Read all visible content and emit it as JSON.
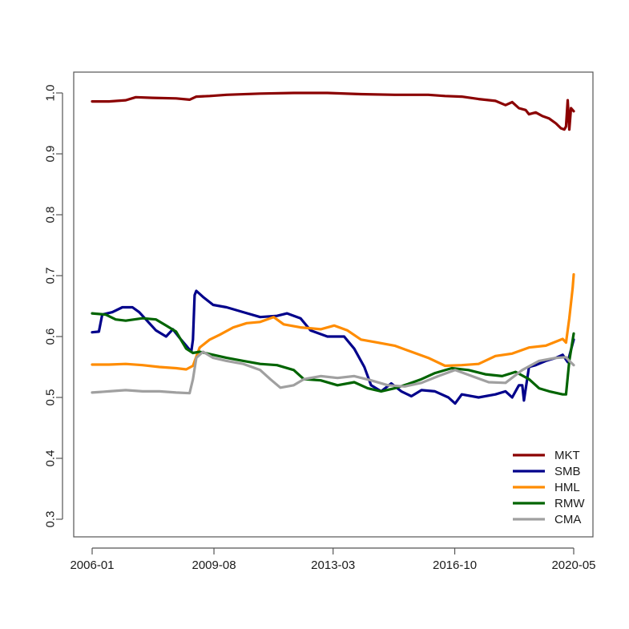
{
  "chart_data": {
    "type": "line",
    "title": "",
    "xlabel": "",
    "ylabel": "",
    "xlim": [
      2006.0,
      2020.42
    ],
    "ylim": [
      0.27,
      1.03
    ],
    "x_ticks": [
      {
        "value": 2006.0,
        "label": "2006-01"
      },
      {
        "value": 2009.625,
        "label": "2009-08"
      },
      {
        "value": 2013.17,
        "label": "2013-03"
      },
      {
        "value": 2016.79,
        "label": "2016-10"
      },
      {
        "value": 2020.33,
        "label": "2020-05"
      }
    ],
    "y_ticks": [
      {
        "value": 0.3,
        "label": "0.3"
      },
      {
        "value": 0.4,
        "label": "0.4"
      },
      {
        "value": 0.5,
        "label": "0.5"
      },
      {
        "value": 0.6,
        "label": "0.6"
      },
      {
        "value": 0.7,
        "label": "0.7"
      },
      {
        "value": 0.8,
        "label": "0.8"
      },
      {
        "value": 0.9,
        "label": "0.9"
      },
      {
        "value": 1.0,
        "label": "1.0"
      }
    ],
    "grid": false,
    "legend_position": "bottom-right",
    "series": [
      {
        "name": "MKT",
        "color": "#8b0000",
        "points": [
          [
            2006.0,
            0.986
          ],
          [
            2006.5,
            0.986
          ],
          [
            2007.0,
            0.988
          ],
          [
            2007.3,
            0.993
          ],
          [
            2007.8,
            0.992
          ],
          [
            2008.5,
            0.991
          ],
          [
            2008.9,
            0.989
          ],
          [
            2009.1,
            0.994
          ],
          [
            2009.5,
            0.995
          ],
          [
            2010.0,
            0.997
          ],
          [
            2011.0,
            0.999
          ],
          [
            2012.0,
            1.0
          ],
          [
            2013.0,
            1.0
          ],
          [
            2014.0,
            0.998
          ],
          [
            2015.0,
            0.997
          ],
          [
            2016.0,
            0.997
          ],
          [
            2016.5,
            0.995
          ],
          [
            2017.0,
            0.994
          ],
          [
            2017.5,
            0.99
          ],
          [
            2018.0,
            0.987
          ],
          [
            2018.3,
            0.98
          ],
          [
            2018.5,
            0.985
          ],
          [
            2018.7,
            0.975
          ],
          [
            2018.9,
            0.972
          ],
          [
            2019.0,
            0.965
          ],
          [
            2019.2,
            0.968
          ],
          [
            2019.4,
            0.962
          ],
          [
            2019.6,
            0.958
          ],
          [
            2019.8,
            0.95
          ],
          [
            2019.95,
            0.942
          ],
          [
            2020.05,
            0.94
          ],
          [
            2020.1,
            0.945
          ],
          [
            2020.15,
            0.988
          ],
          [
            2020.2,
            0.94
          ],
          [
            2020.25,
            0.975
          ],
          [
            2020.33,
            0.97
          ]
        ]
      },
      {
        "name": "SMB",
        "color": "#00008b",
        "points": [
          [
            2006.0,
            0.607
          ],
          [
            2006.2,
            0.608
          ],
          [
            2006.3,
            0.636
          ],
          [
            2006.6,
            0.64
          ],
          [
            2006.9,
            0.648
          ],
          [
            2007.2,
            0.648
          ],
          [
            2007.4,
            0.64
          ],
          [
            2007.6,
            0.628
          ],
          [
            2007.9,
            0.61
          ],
          [
            2008.2,
            0.6
          ],
          [
            2008.4,
            0.612
          ],
          [
            2008.6,
            0.598
          ],
          [
            2008.8,
            0.585
          ],
          [
            2008.95,
            0.575
          ],
          [
            2009.0,
            0.595
          ],
          [
            2009.05,
            0.668
          ],
          [
            2009.1,
            0.675
          ],
          [
            2009.3,
            0.665
          ],
          [
            2009.6,
            0.652
          ],
          [
            2010.0,
            0.648
          ],
          [
            2010.5,
            0.64
          ],
          [
            2011.0,
            0.632
          ],
          [
            2011.5,
            0.634
          ],
          [
            2011.8,
            0.638
          ],
          [
            2012.2,
            0.63
          ],
          [
            2012.5,
            0.61
          ],
          [
            2013.0,
            0.6
          ],
          [
            2013.5,
            0.6
          ],
          [
            2013.8,
            0.58
          ],
          [
            2014.1,
            0.55
          ],
          [
            2014.3,
            0.52
          ],
          [
            2014.6,
            0.51
          ],
          [
            2014.9,
            0.523
          ],
          [
            2015.2,
            0.51
          ],
          [
            2015.5,
            0.502
          ],
          [
            2015.8,
            0.512
          ],
          [
            2016.2,
            0.51
          ],
          [
            2016.6,
            0.5
          ],
          [
            2016.8,
            0.49
          ],
          [
            2017.0,
            0.505
          ],
          [
            2017.5,
            0.5
          ],
          [
            2018.0,
            0.505
          ],
          [
            2018.3,
            0.51
          ],
          [
            2018.5,
            0.5
          ],
          [
            2018.7,
            0.52
          ],
          [
            2018.8,
            0.52
          ],
          [
            2018.85,
            0.495
          ],
          [
            2019.0,
            0.55
          ],
          [
            2019.2,
            0.553
          ],
          [
            2019.5,
            0.56
          ],
          [
            2019.8,
            0.565
          ],
          [
            2020.0,
            0.57
          ],
          [
            2020.15,
            0.558
          ],
          [
            2020.33,
            0.595
          ]
        ]
      },
      {
        "name": "HML",
        "color": "#ff8c00",
        "points": [
          [
            2006.0,
            0.554
          ],
          [
            2006.5,
            0.554
          ],
          [
            2007.0,
            0.555
          ],
          [
            2007.5,
            0.553
          ],
          [
            2008.0,
            0.55
          ],
          [
            2008.5,
            0.548
          ],
          [
            2008.8,
            0.546
          ],
          [
            2009.0,
            0.552
          ],
          [
            2009.2,
            0.582
          ],
          [
            2009.5,
            0.595
          ],
          [
            2009.8,
            0.603
          ],
          [
            2010.2,
            0.615
          ],
          [
            2010.6,
            0.622
          ],
          [
            2011.0,
            0.624
          ],
          [
            2011.4,
            0.632
          ],
          [
            2011.7,
            0.62
          ],
          [
            2012.2,
            0.615
          ],
          [
            2012.8,
            0.612
          ],
          [
            2013.2,
            0.618
          ],
          [
            2013.6,
            0.61
          ],
          [
            2014.0,
            0.595
          ],
          [
            2014.5,
            0.59
          ],
          [
            2015.0,
            0.585
          ],
          [
            2015.5,
            0.575
          ],
          [
            2016.0,
            0.565
          ],
          [
            2016.5,
            0.552
          ],
          [
            2017.0,
            0.553
          ],
          [
            2017.5,
            0.555
          ],
          [
            2018.0,
            0.568
          ],
          [
            2018.5,
            0.572
          ],
          [
            2019.0,
            0.582
          ],
          [
            2019.5,
            0.585
          ],
          [
            2020.0,
            0.596
          ],
          [
            2020.1,
            0.59
          ],
          [
            2020.2,
            0.63
          ],
          [
            2020.3,
            0.68
          ],
          [
            2020.33,
            0.702
          ]
        ]
      },
      {
        "name": "RMW",
        "color": "#006400",
        "points": [
          [
            2006.0,
            0.638
          ],
          [
            2006.4,
            0.636
          ],
          [
            2006.7,
            0.628
          ],
          [
            2007.0,
            0.626
          ],
          [
            2007.5,
            0.63
          ],
          [
            2007.9,
            0.628
          ],
          [
            2008.2,
            0.618
          ],
          [
            2008.5,
            0.608
          ],
          [
            2008.8,
            0.58
          ],
          [
            2009.0,
            0.573
          ],
          [
            2009.2,
            0.575
          ],
          [
            2009.6,
            0.57
          ],
          [
            2010.0,
            0.565
          ],
          [
            2010.5,
            0.56
          ],
          [
            2011.0,
            0.555
          ],
          [
            2011.5,
            0.553
          ],
          [
            2012.0,
            0.545
          ],
          [
            2012.3,
            0.53
          ],
          [
            2012.8,
            0.528
          ],
          [
            2013.3,
            0.52
          ],
          [
            2013.8,
            0.525
          ],
          [
            2014.2,
            0.515
          ],
          [
            2014.6,
            0.51
          ],
          [
            2015.0,
            0.515
          ],
          [
            2015.4,
            0.522
          ],
          [
            2015.8,
            0.53
          ],
          [
            2016.2,
            0.54
          ],
          [
            2016.7,
            0.548
          ],
          [
            2017.2,
            0.545
          ],
          [
            2017.7,
            0.538
          ],
          [
            2018.2,
            0.535
          ],
          [
            2018.6,
            0.542
          ],
          [
            2019.0,
            0.53
          ],
          [
            2019.3,
            0.515
          ],
          [
            2019.6,
            0.51
          ],
          [
            2020.0,
            0.505
          ],
          [
            2020.1,
            0.505
          ],
          [
            2020.2,
            0.56
          ],
          [
            2020.33,
            0.605
          ]
        ]
      },
      {
        "name": "CMA",
        "color": "#a0a0a0",
        "points": [
          [
            2006.0,
            0.508
          ],
          [
            2006.5,
            0.51
          ],
          [
            2007.0,
            0.512
          ],
          [
            2007.5,
            0.51
          ],
          [
            2008.0,
            0.51
          ],
          [
            2008.5,
            0.508
          ],
          [
            2008.9,
            0.507
          ],
          [
            2009.0,
            0.53
          ],
          [
            2009.1,
            0.565
          ],
          [
            2009.3,
            0.575
          ],
          [
            2009.6,
            0.565
          ],
          [
            2010.0,
            0.56
          ],
          [
            2010.5,
            0.555
          ],
          [
            2011.0,
            0.545
          ],
          [
            2011.3,
            0.53
          ],
          [
            2011.6,
            0.516
          ],
          [
            2012.0,
            0.52
          ],
          [
            2012.3,
            0.53
          ],
          [
            2012.8,
            0.535
          ],
          [
            2013.3,
            0.532
          ],
          [
            2013.8,
            0.535
          ],
          [
            2014.3,
            0.528
          ],
          [
            2014.8,
            0.52
          ],
          [
            2015.3,
            0.518
          ],
          [
            2015.8,
            0.524
          ],
          [
            2016.3,
            0.535
          ],
          [
            2016.8,
            0.545
          ],
          [
            2017.3,
            0.535
          ],
          [
            2017.8,
            0.525
          ],
          [
            2018.3,
            0.524
          ],
          [
            2018.8,
            0.545
          ],
          [
            2019.3,
            0.56
          ],
          [
            2019.8,
            0.565
          ],
          [
            2020.1,
            0.566
          ],
          [
            2020.2,
            0.56
          ],
          [
            2020.33,
            0.553
          ]
        ]
      }
    ],
    "legend_entries": [
      "MKT",
      "SMB",
      "HML",
      "RMW",
      "CMA"
    ]
  }
}
